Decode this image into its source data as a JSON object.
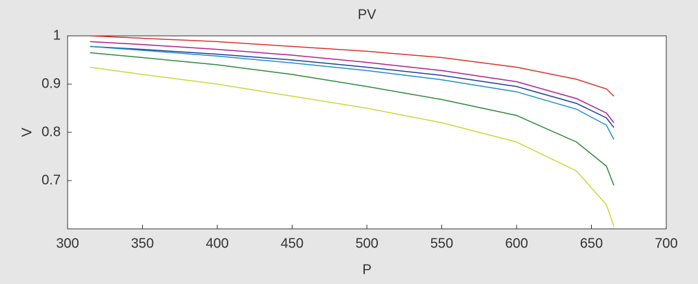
{
  "chart_data": {
    "type": "line",
    "title": "PV",
    "xlabel": "P",
    "ylabel": "V",
    "x": [
      315,
      350,
      400,
      450,
      500,
      550,
      600,
      640,
      660,
      665
    ],
    "series": [
      {
        "color": "#d9342b",
        "values": [
          1.0,
          0.995,
          0.988,
          0.978,
          0.968,
          0.955,
          0.935,
          0.91,
          0.89,
          0.875
        ]
      },
      {
        "color": "#b0208f",
        "values": [
          0.988,
          0.982,
          0.972,
          0.96,
          0.945,
          0.928,
          0.905,
          0.87,
          0.84,
          0.82
        ]
      },
      {
        "color": "#1f3f9f",
        "values": [
          0.978,
          0.972,
          0.962,
          0.95,
          0.935,
          0.918,
          0.895,
          0.86,
          0.83,
          0.81
        ]
      },
      {
        "color": "#1e8fc8",
        "values": [
          0.978,
          0.97,
          0.958,
          0.944,
          0.928,
          0.909,
          0.884,
          0.848,
          0.815,
          0.785
        ]
      },
      {
        "color": "#2e8b3a",
        "values": [
          0.965,
          0.955,
          0.94,
          0.92,
          0.895,
          0.868,
          0.835,
          0.78,
          0.73,
          0.69
        ]
      },
      {
        "color": "#c8d83a",
        "values": [
          0.935,
          0.92,
          0.9,
          0.875,
          0.85,
          0.82,
          0.78,
          0.72,
          0.65,
          0.605
        ]
      }
    ],
    "xlim": [
      300,
      700
    ],
    "xticks": [
      300,
      350,
      400,
      450,
      500,
      550,
      600,
      650,
      700
    ],
    "ylim": [
      0.6,
      1
    ],
    "yticks": [
      0.7,
      0.8,
      0.9,
      1
    ]
  }
}
